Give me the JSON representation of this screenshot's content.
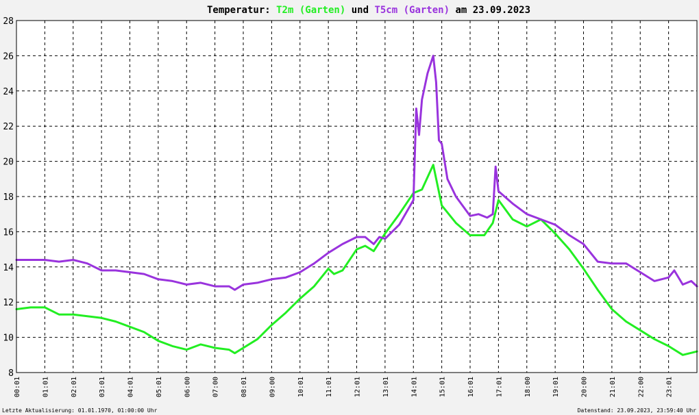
{
  "title": {
    "prefix": "Temperatur: ",
    "series1": "T2m (Garten)",
    "middle": " und ",
    "series2": "T5cm (Garten)",
    "suffix": " am 23.09.2023"
  },
  "footer": {
    "left": "Letzte Aktualisierung: 01.01.1970, 01:00:00 Uhr",
    "right": "Datenstand: 23.09.2023, 23:59:40 Uhr"
  },
  "colors": {
    "background": "#f2f2f2",
    "plot_background": "#ffffff",
    "grid": "#000000",
    "t2m": "#22ee22",
    "t5cm": "#9933dd",
    "text": "#000000"
  },
  "chart_data": {
    "type": "line",
    "title": "Temperatur: T2m (Garten) und T5cm (Garten) am 23.09.2023",
    "xlabel": "",
    "ylabel": "",
    "xlim": [
      0,
      24
    ],
    "ylim": [
      8,
      28
    ],
    "grid": true,
    "legend": "none (series named in title)",
    "x_tick_labels": [
      "00:01",
      "01:01",
      "02:01",
      "03:01",
      "04:01",
      "05:01",
      "06:00",
      "07:00",
      "08:01",
      "09:00",
      "10:01",
      "11:01",
      "12:01",
      "13:01",
      "14:01",
      "15:01",
      "16:01",
      "17:01",
      "18:00",
      "19:01",
      "20:00",
      "21:01",
      "22:00",
      "23:01"
    ],
    "y_tick_labels": [
      "8",
      "10",
      "12",
      "14",
      "16",
      "18",
      "20",
      "22",
      "24",
      "26",
      "28"
    ],
    "y_ticks": [
      8,
      10,
      12,
      14,
      16,
      18,
      20,
      22,
      24,
      26,
      28
    ],
    "series": [
      {
        "name": "T2m (Garten)",
        "color": "#22ee22",
        "x": [
          0,
          0.5,
          1,
          1.5,
          2,
          2.5,
          3,
          3.5,
          4,
          4.5,
          5,
          5.5,
          6,
          6.5,
          7,
          7.5,
          7.7,
          8,
          8.5,
          9,
          9.5,
          10,
          10.5,
          11,
          11.2,
          11.5,
          12,
          12.3,
          12.6,
          13,
          13.5,
          14,
          14.3,
          14.7,
          15,
          15.5,
          16,
          16.5,
          16.8,
          17,
          17.5,
          18,
          18.5,
          19,
          19.5,
          20,
          20.5,
          21,
          21.5,
          22,
          22.5,
          23,
          23.5,
          24
        ],
        "y": [
          11.6,
          11.7,
          11.7,
          11.3,
          11.3,
          11.2,
          11.1,
          10.9,
          10.6,
          10.3,
          9.8,
          9.5,
          9.3,
          9.6,
          9.4,
          9.3,
          9.1,
          9.4,
          9.9,
          10.7,
          11.4,
          12.2,
          12.9,
          13.9,
          13.6,
          13.8,
          15.0,
          15.2,
          14.9,
          15.9,
          17.0,
          18.2,
          18.4,
          19.8,
          17.5,
          16.5,
          15.8,
          15.8,
          16.5,
          17.8,
          16.7,
          16.3,
          16.7,
          15.9,
          15.0,
          13.9,
          12.7,
          11.6,
          10.9,
          10.4,
          9.9,
          9.5,
          9.0,
          9.2
        ]
      },
      {
        "name": "T5cm (Garten)",
        "color": "#9933dd",
        "x": [
          0,
          0.5,
          1,
          1.5,
          2,
          2.5,
          3,
          3.5,
          4,
          4.5,
          5,
          5.5,
          6,
          6.5,
          7,
          7.5,
          7.7,
          8,
          8.5,
          9,
          9.5,
          10,
          10.5,
          11,
          11.5,
          12,
          12.3,
          12.6,
          12.8,
          13,
          13.5,
          14,
          14.1,
          14.2,
          14.3,
          14.5,
          14.7,
          14.8,
          14.9,
          15,
          15.2,
          15.5,
          16,
          16.3,
          16.6,
          16.8,
          16.9,
          17,
          17.5,
          18,
          18.5,
          19,
          19.5,
          20,
          20.5,
          21,
          21.5,
          22,
          22.5,
          23,
          23.2,
          23.5,
          23.8,
          24
        ],
        "y": [
          14.4,
          14.4,
          14.4,
          14.3,
          14.4,
          14.2,
          13.8,
          13.8,
          13.7,
          13.6,
          13.3,
          13.2,
          13.0,
          13.1,
          12.9,
          12.9,
          12.7,
          13.0,
          13.1,
          13.3,
          13.4,
          13.7,
          14.2,
          14.8,
          15.3,
          15.7,
          15.7,
          15.3,
          15.7,
          15.6,
          16.4,
          17.8,
          23.0,
          21.5,
          23.5,
          25.0,
          26.0,
          24.5,
          21.2,
          21.0,
          19.0,
          18.0,
          16.9,
          17.0,
          16.8,
          17.0,
          19.7,
          18.3,
          17.6,
          17.0,
          16.7,
          16.4,
          15.8,
          15.3,
          14.3,
          14.2,
          14.2,
          13.7,
          13.2,
          13.4,
          13.8,
          13.0,
          13.2,
          12.9
        ]
      }
    ]
  }
}
